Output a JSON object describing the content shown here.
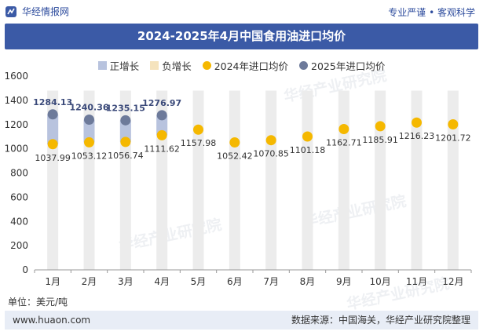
{
  "header": {
    "brand": "华经情报网",
    "tagline": "专业严谨 • 客观科学"
  },
  "watermarks": [
    "华经产业研究院",
    "华经产业研究院",
    "华经产业研究院",
    "华经产业研究院"
  ],
  "footer": {
    "url": "www.huaon.com",
    "source": "数据来源：中国海关，华经产业研究院整理"
  },
  "colors": {
    "title_bg": "#3b5aa6",
    "pos_bar": "#b8c3de",
    "neg_bar": "#f5e3bd",
    "dot_2024": "#f5b800",
    "dot_2025": "#6d7a9a",
    "gridbar": "#ececec"
  },
  "chart_data": {
    "type": "scatter",
    "title": "2024-2025年4月中国食用油进口均价",
    "unit_label": "单位：美元/吨",
    "categories": [
      "1月",
      "2月",
      "3月",
      "4月",
      "5月",
      "6月",
      "7月",
      "8月",
      "9月",
      "10月",
      "11月",
      "12月"
    ],
    "legend": [
      "正增长",
      "负增长",
      "2024年进口均价",
      "2025年进口均价"
    ],
    "series": [
      {
        "name": "2024年进口均价",
        "values": [
          1037.99,
          1053.12,
          1056.74,
          1111.62,
          1157.98,
          1052.42,
          1070.85,
          1101.18,
          1162.71,
          1185.91,
          1216.23,
          1201.72
        ]
      },
      {
        "name": "2025年进口均价",
        "values": [
          1284.13,
          1240.36,
          1235.15,
          1276.97,
          null,
          null,
          null,
          null,
          null,
          null,
          null,
          null
        ]
      }
    ],
    "ylim": [
      0,
      1600
    ],
    "yticks": [
      0,
      200,
      400,
      600,
      800,
      1000,
      1200,
      1400,
      1600
    ],
    "grid": false,
    "legend_position": "top"
  }
}
